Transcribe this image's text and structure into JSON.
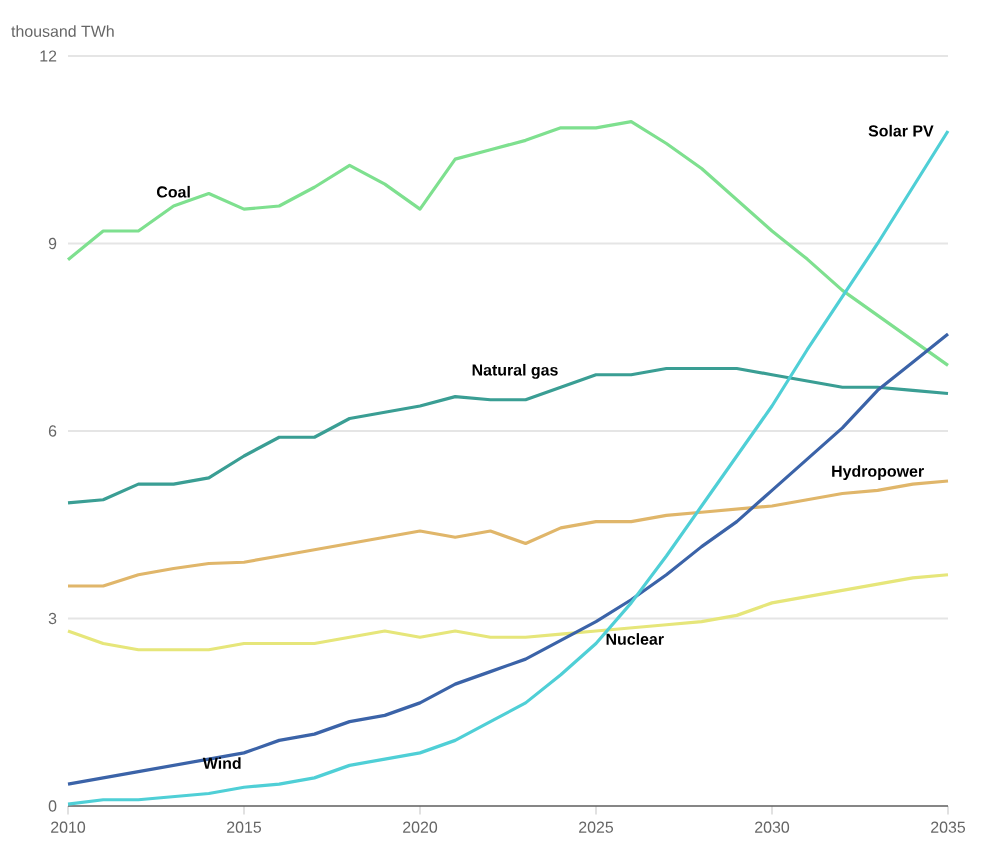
{
  "chart_data": {
    "type": "line",
    "ylabel": "thousand TWh",
    "x": [
      2010,
      2011,
      2012,
      2013,
      2014,
      2015,
      2016,
      2017,
      2018,
      2019,
      2020,
      2021,
      2022,
      2023,
      2024,
      2025,
      2026,
      2027,
      2028,
      2029,
      2030,
      2031,
      2032,
      2033,
      2034,
      2035
    ],
    "series": [
      {
        "name": "Coal",
        "color": "#7ee08f",
        "values": [
          8.74,
          9.2,
          9.2,
          9.6,
          9.8,
          9.55,
          9.6,
          9.9,
          10.25,
          9.95,
          9.55,
          10.35,
          10.5,
          10.65,
          10.85,
          10.85,
          10.95,
          10.6,
          10.2,
          9.7,
          9.2,
          8.75,
          8.25,
          7.85,
          7.45,
          7.05
        ]
      },
      {
        "name": "Natural gas",
        "color": "#3a9e94",
        "values": [
          4.85,
          4.9,
          5.15,
          5.15,
          5.25,
          5.6,
          5.9,
          5.9,
          6.2,
          6.3,
          6.4,
          6.55,
          6.5,
          6.5,
          6.7,
          6.9,
          6.9,
          7.0,
          7.0,
          7.0,
          6.9,
          6.8,
          6.7,
          6.7,
          6.65,
          6.6
        ]
      },
      {
        "name": "Hydropower",
        "color": "#e0b66a",
        "values": [
          3.52,
          3.52,
          3.7,
          3.8,
          3.88,
          3.9,
          4.0,
          4.1,
          4.2,
          4.3,
          4.4,
          4.3,
          4.4,
          4.2,
          4.45,
          4.55,
          4.55,
          4.65,
          4.7,
          4.75,
          4.8,
          4.9,
          5.0,
          5.05,
          5.15,
          5.2
        ]
      },
      {
        "name": "Nuclear",
        "color": "#e6e67a",
        "values": [
          2.8,
          2.6,
          2.5,
          2.5,
          2.5,
          2.6,
          2.6,
          2.6,
          2.7,
          2.8,
          2.7,
          2.8,
          2.7,
          2.7,
          2.75,
          2.8,
          2.85,
          2.9,
          2.95,
          3.05,
          3.25,
          3.35,
          3.45,
          3.55,
          3.65,
          3.7
        ]
      },
      {
        "name": "Wind",
        "color": "#3b63a8",
        "values": [
          0.35,
          0.45,
          0.55,
          0.65,
          0.75,
          0.85,
          1.05,
          1.15,
          1.35,
          1.45,
          1.65,
          1.95,
          2.15,
          2.35,
          2.65,
          2.95,
          3.3,
          3.7,
          4.15,
          4.55,
          5.05,
          5.55,
          6.05,
          6.65,
          7.1,
          7.55
        ]
      },
      {
        "name": "Solar PV",
        "color": "#4fcfd6",
        "values": [
          0.03,
          0.1,
          0.1,
          0.15,
          0.2,
          0.3,
          0.35,
          0.45,
          0.65,
          0.75,
          0.85,
          1.05,
          1.35,
          1.65,
          2.1,
          2.6,
          3.25,
          4.0,
          4.8,
          5.6,
          6.4,
          7.3,
          8.15,
          9.0,
          9.9,
          10.8
        ]
      }
    ],
    "xlim": [
      2010,
      2035
    ],
    "ylim": [
      0,
      12
    ],
    "xticks": [
      2010,
      2015,
      2020,
      2025,
      2030,
      2035
    ],
    "yticks": [
      0,
      3,
      6,
      9,
      12
    ],
    "grid": "y",
    "marker": "none",
    "line_style": "solid"
  }
}
